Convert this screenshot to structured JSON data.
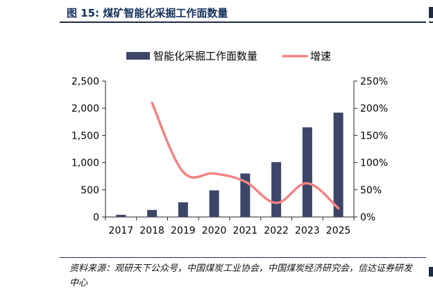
{
  "figure": {
    "title": "图 15:  煤矿智能化采掘工作面数量",
    "source": "资料来源：观研天下公众号，中国煤炭工业协会，中国煤炭经济研究会，信达证券研发中心"
  },
  "colors": {
    "bar": "#3c4668",
    "line": "#f58282",
    "title": "#16305c",
    "axis": "#222222"
  },
  "chart_data": {
    "type": "bar",
    "categories": [
      "2017",
      "2018",
      "2019",
      "2020",
      "2021",
      "2022",
      "2023",
      "2025"
    ],
    "series": [
      {
        "name": "智能化采掘工作面数量",
        "type": "bar",
        "axis": "left",
        "values": [
          40,
          130,
          270,
          490,
          800,
          1010,
          1650,
          1920
        ]
      },
      {
        "name": "增速",
        "type": "line",
        "axis": "right",
        "unit": "%",
        "values": [
          null,
          210,
          83,
          80,
          65,
          26,
          62,
          16
        ]
      }
    ],
    "y_left": {
      "min": 0,
      "max": 2500,
      "ticks": [
        "0",
        "500",
        "1,000",
        "1,500",
        "2,000",
        "2,500"
      ]
    },
    "y_right": {
      "min": 0,
      "max": 250,
      "ticks": [
        "0%",
        "50%",
        "100%",
        "150%",
        "200%",
        "250%"
      ]
    },
    "legend_position": "top-center",
    "grid": false
  }
}
